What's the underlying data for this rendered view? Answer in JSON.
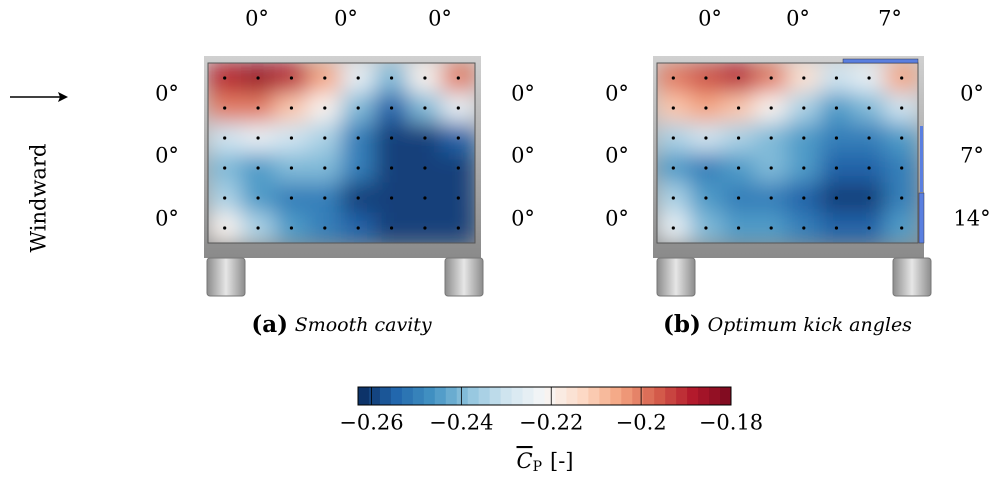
{
  "figure": {
    "windward_label": "Windward",
    "panels": [
      {
        "tag": "(a)",
        "caption": "Smooth cavity",
        "top_angles": [
          "0°",
          "0°",
          "0°"
        ],
        "left_angles": [
          "0°",
          "0°",
          "0°"
        ],
        "right_angles": [
          "0°",
          "0°",
          "0°"
        ],
        "cp_grid": [
          [
            -0.19,
            -0.185,
            -0.19,
            -0.205,
            -0.225,
            -0.24,
            -0.22,
            -0.2
          ],
          [
            -0.2,
            -0.2,
            -0.21,
            -0.22,
            -0.24,
            -0.255,
            -0.24,
            -0.225
          ],
          [
            -0.23,
            -0.225,
            -0.23,
            -0.235,
            -0.25,
            -0.26,
            -0.26,
            -0.255
          ],
          [
            -0.24,
            -0.245,
            -0.24,
            -0.24,
            -0.25,
            -0.26,
            -0.26,
            -0.26
          ],
          [
            -0.235,
            -0.245,
            -0.25,
            -0.25,
            -0.26,
            -0.26,
            -0.26,
            -0.26
          ],
          [
            -0.22,
            -0.235,
            -0.245,
            -0.25,
            -0.255,
            -0.26,
            -0.26,
            -0.26
          ]
        ]
      },
      {
        "tag": "(b)",
        "caption": "Optimum kick angles",
        "top_angles": [
          "0°",
          "0°",
          "7°"
        ],
        "left_angles": [
          "0°",
          "0°",
          "0°"
        ],
        "right_angles": [
          "0°",
          "7°",
          "14°"
        ],
        "cp_grid": [
          [
            -0.2,
            -0.195,
            -0.19,
            -0.2,
            -0.215,
            -0.23,
            -0.225,
            -0.205
          ],
          [
            -0.21,
            -0.205,
            -0.21,
            -0.22,
            -0.235,
            -0.245,
            -0.24,
            -0.23
          ],
          [
            -0.235,
            -0.23,
            -0.235,
            -0.24,
            -0.245,
            -0.25,
            -0.25,
            -0.245
          ],
          [
            -0.245,
            -0.25,
            -0.245,
            -0.24,
            -0.245,
            -0.255,
            -0.255,
            -0.25
          ],
          [
            -0.235,
            -0.245,
            -0.25,
            -0.25,
            -0.255,
            -0.26,
            -0.26,
            -0.25
          ],
          [
            -0.225,
            -0.24,
            -0.245,
            -0.245,
            -0.25,
            -0.255,
            -0.255,
            -0.245
          ]
        ]
      }
    ],
    "colorbar": {
      "lim": [
        -0.263,
        -0.18
      ],
      "ticks": [
        {
          "value": -0.26,
          "label": "−0.26"
        },
        {
          "value": -0.24,
          "label": "−0.24"
        },
        {
          "value": -0.22,
          "label": "−0.22"
        },
        {
          "value": -0.2,
          "label": "−0.2"
        },
        {
          "value": -0.18,
          "label": "−0.18"
        }
      ],
      "label_symbol": "C",
      "label_subscript": "P",
      "label_unit": "[-]"
    }
  }
}
